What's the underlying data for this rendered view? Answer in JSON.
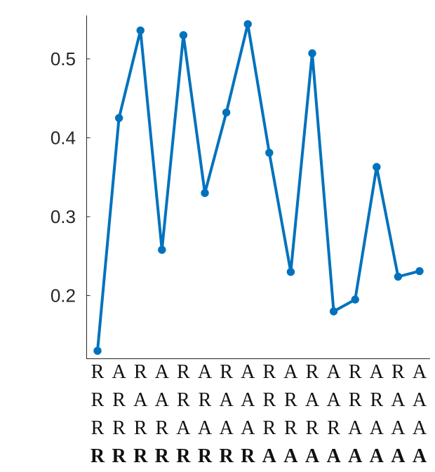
{
  "colors": {
    "series": "#0072bd",
    "axis": "#262626",
    "label": "#111111"
  },
  "chart_data": {
    "type": "line",
    "title": "",
    "xlabel": "",
    "ylabel": "",
    "grid": false,
    "ylim": [
      0.12,
      0.555
    ],
    "yticks": [
      0.2,
      0.3,
      0.4,
      0.5
    ],
    "ytick_labels": [
      "0.2",
      "0.3",
      "0.4",
      "0.5"
    ],
    "x": [
      1,
      2,
      3,
      4,
      5,
      6,
      7,
      8,
      9,
      10,
      11,
      12,
      13,
      14,
      15,
      16
    ],
    "category_label_rows": [
      {
        "bold": false,
        "labels": [
          "R",
          "A",
          "R",
          "A",
          "R",
          "A",
          "R",
          "A",
          "R",
          "A",
          "R",
          "A",
          "R",
          "A",
          "R",
          "A"
        ]
      },
      {
        "bold": false,
        "labels": [
          "R",
          "R",
          "A",
          "A",
          "R",
          "R",
          "A",
          "A",
          "R",
          "R",
          "A",
          "A",
          "R",
          "R",
          "A",
          "A"
        ]
      },
      {
        "bold": false,
        "labels": [
          "R",
          "R",
          "R",
          "R",
          "A",
          "A",
          "A",
          "A",
          "R",
          "R",
          "R",
          "R",
          "A",
          "A",
          "A",
          "A"
        ]
      },
      {
        "bold": true,
        "labels": [
          "R",
          "R",
          "R",
          "R",
          "R",
          "R",
          "R",
          "R",
          "A",
          "A",
          "A",
          "A",
          "A",
          "A",
          "A",
          "A"
        ]
      }
    ],
    "series": [
      {
        "values": [
          0.13,
          0.425,
          0.536,
          0.258,
          0.53,
          0.33,
          0.432,
          0.544,
          0.381,
          0.23,
          0.507,
          0.18,
          0.195,
          0.363,
          0.224,
          0.231
        ]
      }
    ]
  }
}
